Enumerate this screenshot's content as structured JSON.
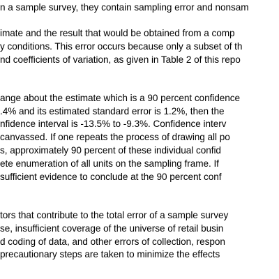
{
  "document": {
    "paragraph_1": [
      "n a sample survey, they contain sampling error and nonsam"
    ],
    "paragraph_2": [
      "imate and the result that would be obtained from a comp",
      "y conditions.  This error occurs because only a subset of th",
      "nd coefficients of variation, as given in Table 2 of this repo"
    ],
    "paragraph_3": [
      "ange about the estimate which is a 90 percent confidence",
      ".4% and its estimated standard error is 1.2%, then the",
      "nfidence interval is -13.5% to -9.3%.  Confidence interv",
      "canvassed.  If one repeats the process of drawing all po",
      "s, approximately 90 percent of these individual confid",
      "ete enumeration of all units on the sampling frame.  If",
      "sufficient evidence to conclude at the 90 percent conf"
    ],
    "paragraph_4": [
      "tors that contribute to the total error of a sample survey",
      "se, insufficient coverage of the universe of retail busin",
      "d coding of data, and other errors of collection, respon",
      "precautionary steps are taken to minimize the effects"
    ]
  }
}
